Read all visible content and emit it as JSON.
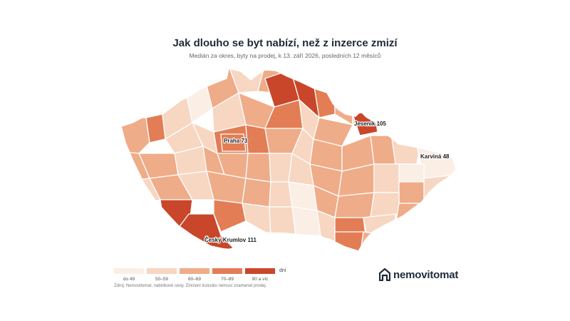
{
  "header": {
    "title": "Jak dlouho se byt nabízí, než z inzerce zmizí",
    "subtitle": "Medián za okres, byty na prodej, k 13. září 2026, posledních 12 měsíců"
  },
  "map": {
    "region": "Czech Republic",
    "unit": "dní",
    "highlights": [
      {
        "name": "Praha",
        "value": 73,
        "label": "Praha 73"
      },
      {
        "name": "Jeseník",
        "value": 105,
        "label": "Jeseník 105"
      },
      {
        "name": "Karviná",
        "value": 48,
        "label": "Karviná 48"
      },
      {
        "name": "Český Krumlov",
        "value": 111,
        "label": "Český Krumlov 111"
      }
    ]
  },
  "legend": {
    "unit": "dní",
    "bins": [
      {
        "label": "do 49",
        "color": "#fbeee5"
      },
      {
        "label": "50–59",
        "color": "#f7d6c2"
      },
      {
        "label": "60–69",
        "color": "#efac88"
      },
      {
        "label": "70–89",
        "color": "#e37d55"
      },
      {
        "label": "90 a víc",
        "color": "#c9462a"
      }
    ]
  },
  "source": "Zdroj: Nemovitomat, nabídkové ceny. Zmizení inzerátu nemusí znamenat prodej.",
  "brand": {
    "name": "nemovitomat",
    "icon": "house-icon",
    "color": "#1e2a3a"
  }
}
